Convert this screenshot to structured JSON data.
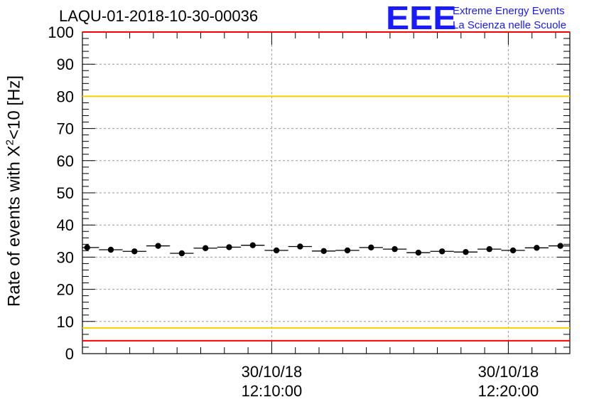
{
  "header": {
    "run_title": "LAQU-01-2018-10-30-00036",
    "logo_text": "EEE",
    "logo_line1": "Extreme Energy Events",
    "logo_line2": "La Scienza nelle Scuole"
  },
  "colors": {
    "logo": "#1a1aff",
    "limit_red": "#ff0000",
    "limit_yellow": "#f0d000",
    "grid": "#999999",
    "points": "#000000"
  },
  "chart_data": {
    "type": "scatter",
    "title": "LAQU-01-2018-10-30-00036",
    "ylabel_prefix": "Rate of events with X",
    "ylabel_sup": "2",
    "ylabel_suffix": "<10 [Hz]",
    "ylabel": "Rate of events with X^2<10 [Hz]",
    "ylim": [
      0,
      100
    ],
    "yticks": [
      0,
      10,
      20,
      30,
      40,
      50,
      60,
      70,
      80,
      90,
      100
    ],
    "ytick_labels": [
      "0",
      "10",
      "20",
      "30",
      "40",
      "50",
      "60",
      "70",
      "80",
      "90",
      "100"
    ],
    "x_unit": "minutes since 30/10/18 12:00:00",
    "xlim": [
      2.0,
      22.6
    ],
    "xticks": [
      {
        "x": 10,
        "label_date": "30/10/18",
        "label_time": "12:10:00"
      },
      {
        "x": 20,
        "label_date": "30/10/18",
        "label_time": "12:20:00"
      }
    ],
    "bin_width": 1.0,
    "series": [
      {
        "name": "rate",
        "x": [
          2.2,
          3.2,
          4.2,
          5.2,
          6.2,
          7.2,
          8.2,
          9.2,
          10.2,
          11.2,
          12.2,
          13.2,
          14.2,
          15.2,
          16.2,
          17.2,
          18.2,
          19.2,
          20.2,
          21.2,
          22.2
        ],
        "values": [
          33.0,
          32.3,
          31.8,
          33.5,
          31.2,
          32.8,
          33.1,
          33.7,
          32.1,
          33.3,
          31.9,
          32.1,
          33.0,
          32.5,
          31.4,
          31.8,
          31.6,
          32.5,
          32.1,
          32.9,
          33.5
        ]
      }
    ],
    "hlines": [
      {
        "y": 100,
        "color": "red"
      },
      {
        "y": 80,
        "color": "yellow"
      },
      {
        "y": 8,
        "color": "yellow"
      },
      {
        "y": 4,
        "color": "red"
      }
    ],
    "grid": true
  }
}
